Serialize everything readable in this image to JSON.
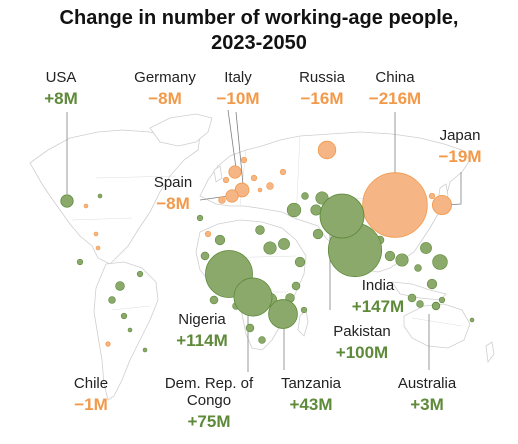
{
  "chart_data": {
    "type": "bubble-map",
    "title_lines": [
      "Change in number of working-age people,",
      "2023-2050"
    ],
    "unit": "M",
    "colors": {
      "increase": "#5e8a3a",
      "decrease": "#f2994a",
      "increase_fill": "#8aa96a",
      "decrease_fill": "#f5b585"
    },
    "labeled": [
      {
        "country": "USA",
        "value": 8,
        "display": "+8M"
      },
      {
        "country": "Germany",
        "value": -8,
        "display": "−8M"
      },
      {
        "country": "Italy",
        "value": -10,
        "display": "−10M"
      },
      {
        "country": "Russia",
        "value": -16,
        "display": "−16M"
      },
      {
        "country": "China",
        "value": -216,
        "display": "−216M"
      },
      {
        "country": "Japan",
        "value": -19,
        "display": "−19M"
      },
      {
        "country": "Spain",
        "value": -8,
        "display": "−8M"
      },
      {
        "country": "India",
        "value": 147,
        "display": "+147M"
      },
      {
        "country": "Nigeria",
        "value": 114,
        "display": "+114M"
      },
      {
        "country": "Pakistan",
        "value": 100,
        "display": "+100M"
      },
      {
        "country": "Dem. Rep. of Congo",
        "value": 75,
        "display": "+75M"
      },
      {
        "country": "Tanzania",
        "value": 43,
        "display": "+43M"
      },
      {
        "country": "Australia",
        "value": 3,
        "display": "+3M"
      },
      {
        "country": "Chile",
        "value": -1,
        "display": "−1M"
      }
    ]
  }
}
